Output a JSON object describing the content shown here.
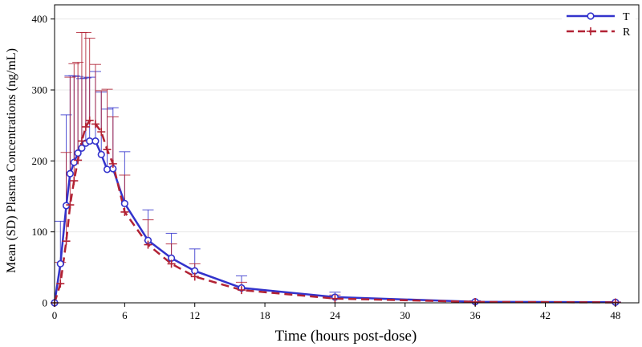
{
  "chart_data": {
    "type": "line",
    "title": "",
    "xlabel": "Time (hours post-dose)",
    "ylabel": "Mean (SD) Plasma Concentrations (ng/mL)",
    "xlim": [
      0,
      50
    ],
    "ylim": [
      0,
      420
    ],
    "xticks": [
      0,
      6,
      12,
      18,
      24,
      30,
      36,
      42,
      48
    ],
    "xtick_labels": [
      "0",
      "6",
      "12",
      "18",
      "24",
      "30",
      "36",
      "42",
      "48"
    ],
    "yticks": [
      0,
      100,
      200,
      300,
      400
    ],
    "ytick_labels": [
      "0",
      "100",
      "200",
      "300",
      "400"
    ],
    "grid": "horizontal",
    "legend": "top-right",
    "series": [
      {
        "name": "T",
        "color": "#3333cc",
        "line": "solid",
        "marker": "circle",
        "x": [
          0,
          0.5,
          1,
          1.33,
          1.67,
          2,
          2.33,
          2.67,
          3,
          3.5,
          4,
          4.5,
          5,
          6,
          8,
          10,
          12,
          16,
          24,
          36,
          48
        ],
        "y": [
          0,
          55,
          137,
          182,
          198,
          211,
          218,
          225,
          228,
          228,
          209,
          188,
          189,
          140,
          88,
          63,
          45,
          21,
          8,
          1.5,
          0.8
        ],
        "sd": [
          0,
          60,
          128,
          138,
          122,
          108,
          98,
          92,
          90,
          98,
          88,
          85,
          86,
          73,
          43,
          35,
          31,
          17,
          7,
          1.5,
          0.5
        ]
      },
      {
        "name": "R",
        "color": "#b22234",
        "line": "dashed",
        "marker": "plus",
        "x": [
          0,
          0.5,
          1,
          1.33,
          1.67,
          2,
          2.33,
          2.67,
          3,
          3.5,
          4,
          4.5,
          5,
          6,
          8,
          10,
          12,
          16,
          24,
          36,
          48
        ],
        "y": [
          0,
          27,
          87,
          138,
          172,
          201,
          228,
          248,
          257,
          252,
          241,
          216,
          196,
          128,
          82,
          55,
          37,
          18,
          6,
          1.2,
          0.6
        ],
        "sd": [
          0,
          30,
          125,
          180,
          165,
          138,
          153,
          133,
          116,
          84,
          58,
          85,
          66,
          52,
          35,
          28,
          18,
          11,
          5,
          1,
          0.4
        ]
      }
    ]
  }
}
